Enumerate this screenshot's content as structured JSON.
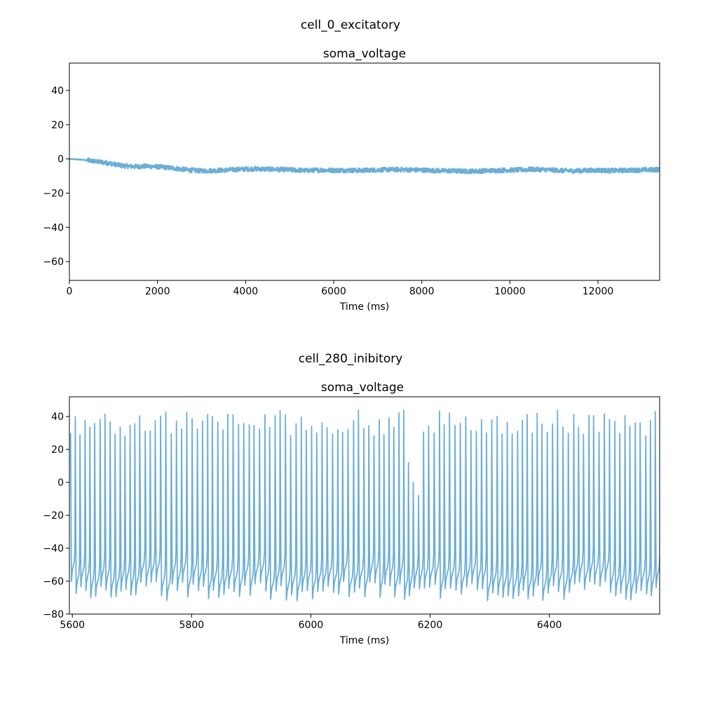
{
  "chart_data": [
    {
      "type": "line",
      "suptitle": "cell_0_excitatory",
      "title": "soma_voltage",
      "xlabel": "Time (ms)",
      "ylabel": "",
      "xlim": [
        0,
        13400
      ],
      "ylim": [
        -71,
        56
      ],
      "xticks": [
        0,
        2000,
        4000,
        6000,
        8000,
        10000,
        12000
      ],
      "xtick_labels": [
        "0",
        "2000",
        "4000",
        "6000",
        "8000",
        "10000",
        "12000"
      ],
      "yticks": [
        -60,
        -40,
        -20,
        0,
        20,
        40
      ],
      "ytick_labels": [
        "−60",
        "−40",
        "−20",
        "0",
        "20",
        "40"
      ],
      "grid": false,
      "series": [
        {
          "color": "#6baed6",
          "x": [
            0,
            300,
            600,
            900,
            1200,
            1500,
            1800,
            2100,
            2400,
            2700,
            3000,
            3300,
            3600,
            3900,
            4200,
            4500,
            4800,
            5100,
            5400,
            5700,
            6000,
            6300,
            6600,
            6900,
            7200,
            7500,
            7800,
            8100,
            8400,
            8700,
            9000,
            9300,
            9600,
            9900,
            10200,
            10500,
            10800,
            11100,
            11400,
            11700,
            12000,
            12300,
            12600,
            12900,
            13200,
            13400
          ],
          "values": [
            0,
            -0.5,
            -1.5,
            -2.5,
            -4,
            -4.5,
            -4.3,
            -4.8,
            -5.5,
            -6.5,
            -7,
            -6.8,
            -6.5,
            -6,
            -5.8,
            -6,
            -6.2,
            -6.5,
            -6.8,
            -6.5,
            -6.7,
            -6.6,
            -6.8,
            -6.5,
            -6.3,
            -6.2,
            -6.4,
            -6.6,
            -6.9,
            -7,
            -7.2,
            -7.1,
            -6.8,
            -6.6,
            -6.4,
            -6.1,
            -6.3,
            -6.7,
            -7,
            -6.8,
            -6.6,
            -6.9,
            -6.7,
            -6.5,
            -6.4,
            -6.2
          ]
        }
      ]
    },
    {
      "type": "line",
      "suptitle": "cell_280_inibitory",
      "title": "soma_voltage",
      "xlabel": "Time (ms)",
      "ylabel": "",
      "xlim": [
        5595,
        6585
      ],
      "ylim": [
        -80,
        52
      ],
      "xticks": [
        5600,
        5800,
        6000,
        6200,
        6400
      ],
      "xtick_labels": [
        "5600",
        "5800",
        "6000",
        "6200",
        "6400"
      ],
      "yticks": [
        -80,
        -60,
        -40,
        -20,
        0,
        20,
        40
      ],
      "ytick_labels": [
        "−80",
        "−60",
        "−40",
        "−20",
        "0",
        "20",
        "40"
      ],
      "grid": false,
      "series": [
        {
          "color": "#6baed6",
          "spikes": {
            "start": 5597,
            "end": 6585,
            "interval": 8.6,
            "peak_min": 28,
            "peak_max": 44,
            "trough_min": -72,
            "trough_max": -60,
            "burst_suppression_window": [
              6152,
              6178
            ],
            "burst_suppression_peaks": [
              12,
              0,
              -8,
              18
            ]
          }
        }
      ]
    }
  ]
}
